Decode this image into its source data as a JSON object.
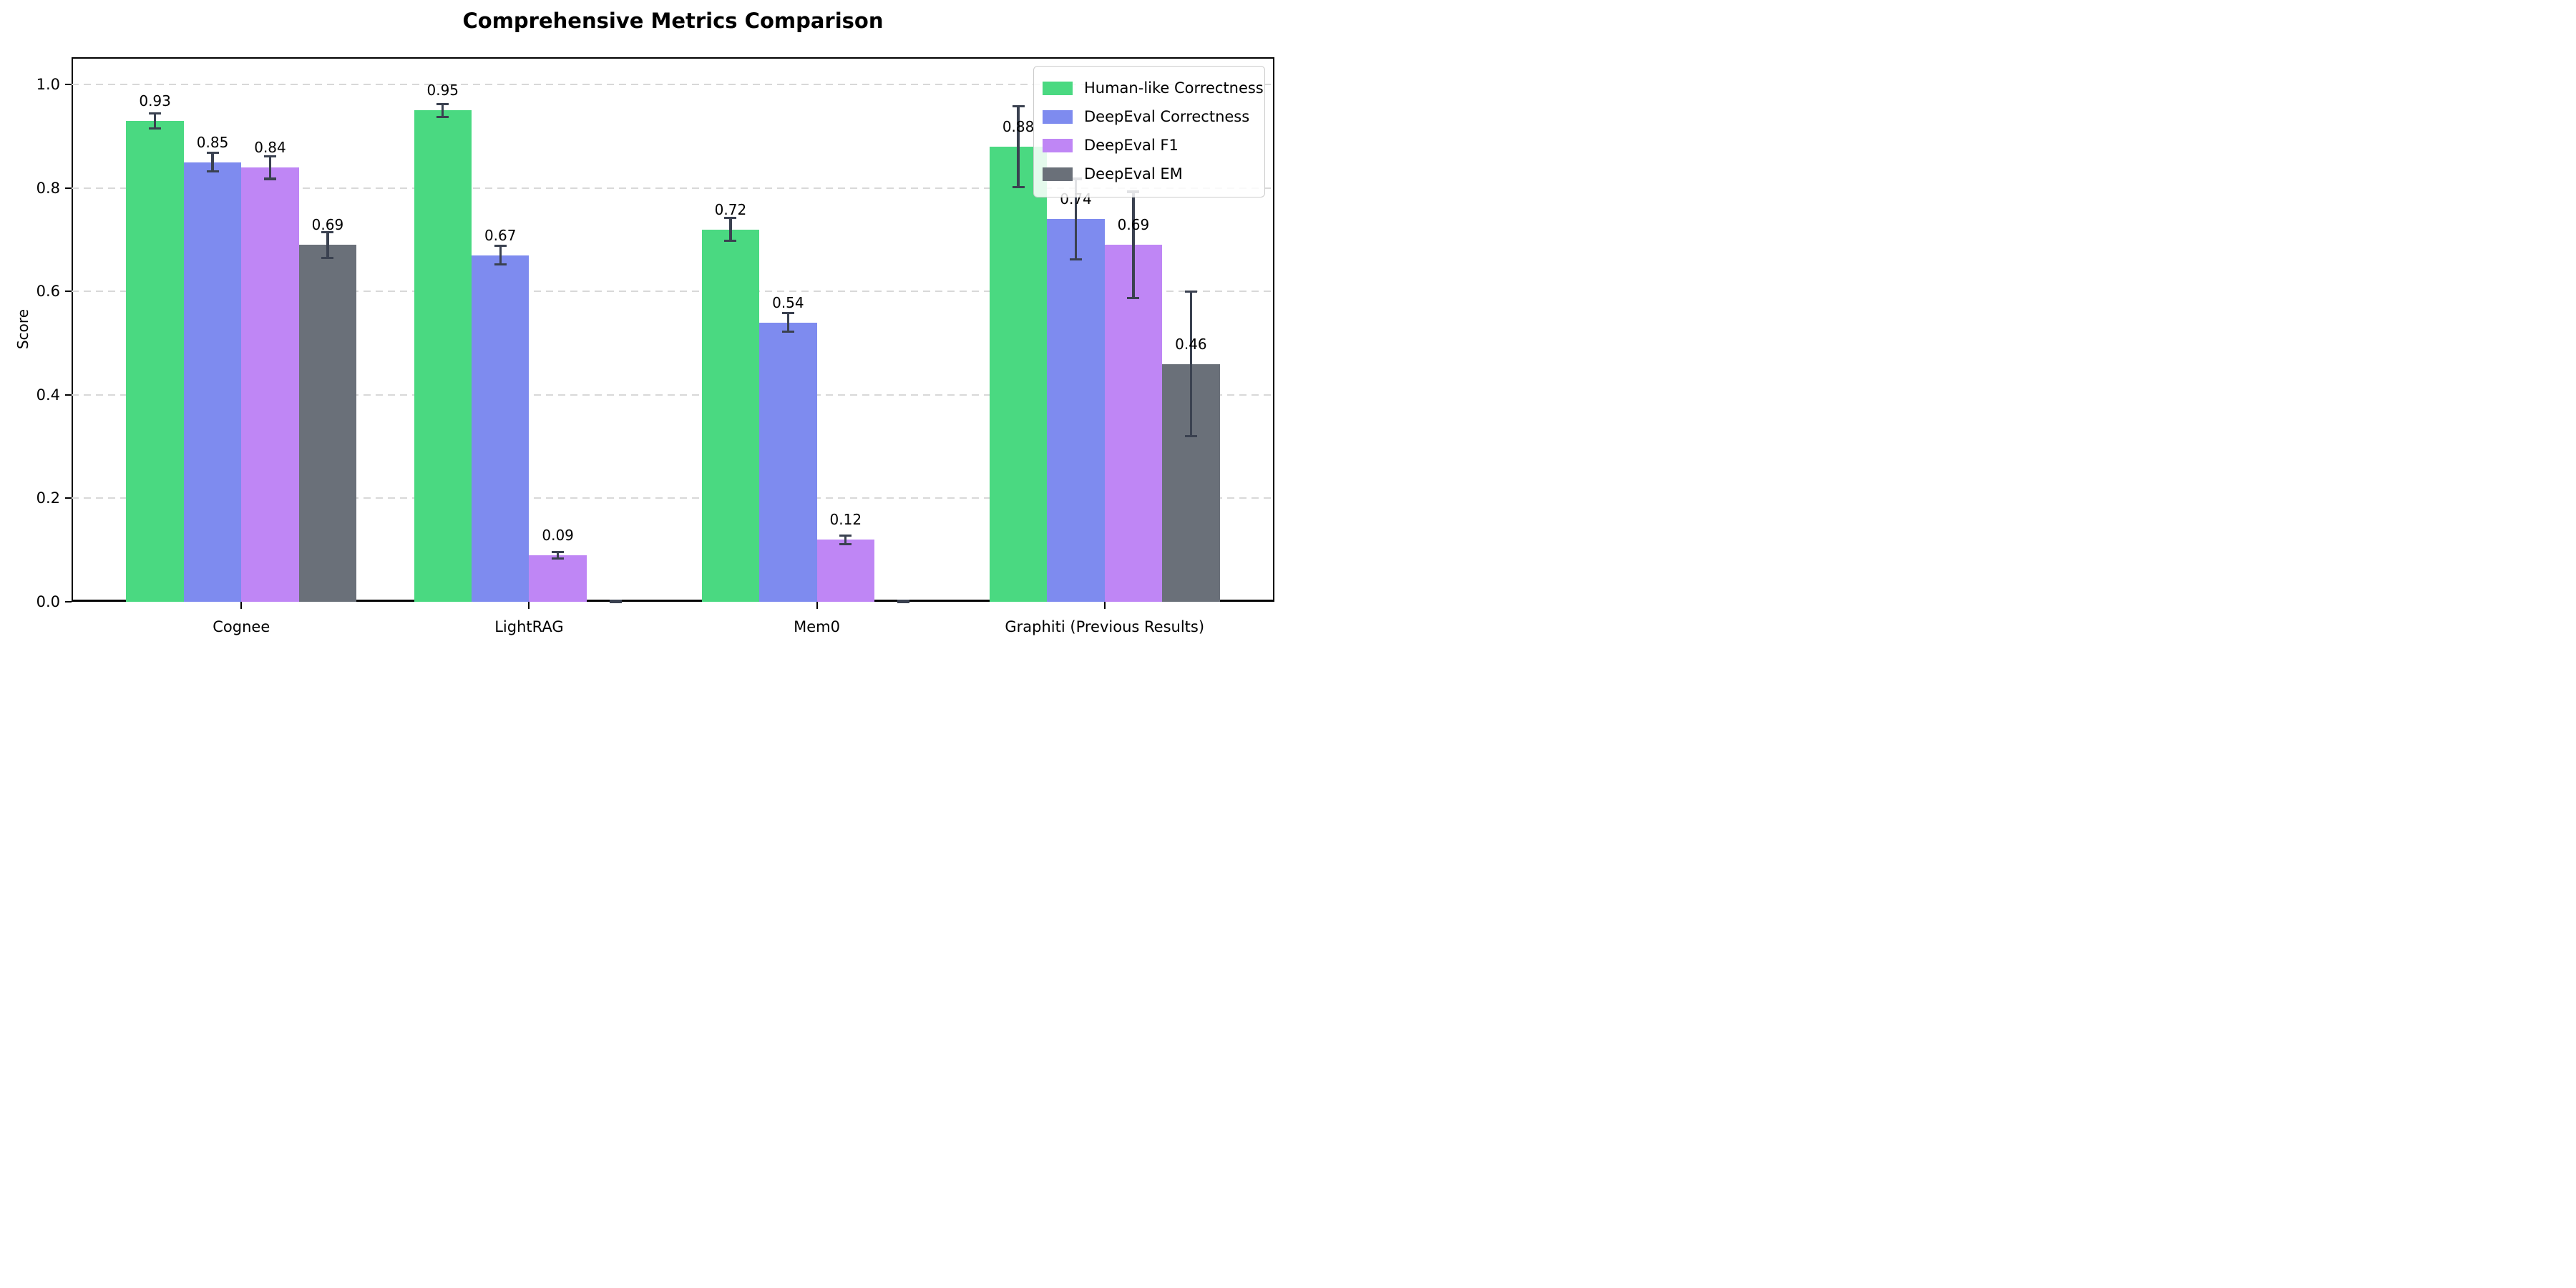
{
  "title": "Comprehensive Metrics Comparison",
  "chart_data": {
    "type": "bar",
    "title": "Comprehensive Metrics Comparison",
    "xlabel": "",
    "ylabel": "Score",
    "categories": [
      "Cognee",
      "LightRAG",
      "Mem0",
      "Graphiti (Previous Results)"
    ],
    "series": [
      {
        "name": "Human-like Correctness",
        "color": "#4ad981",
        "values": [
          0.93,
          0.95,
          0.72,
          0.88
        ],
        "errors": [
          0.015,
          0.012,
          0.022,
          0.078
        ],
        "value_labels": [
          "0.93",
          "0.95",
          "0.72",
          "0.88"
        ]
      },
      {
        "name": "DeepEval Correctness",
        "color": "#7e8bef",
        "values": [
          0.85,
          0.67,
          0.54,
          0.74
        ],
        "errors": [
          0.018,
          0.018,
          0.018,
          0.078
        ],
        "value_labels": [
          "0.85",
          "0.67",
          "0.54",
          "0.74"
        ]
      },
      {
        "name": "DeepEval F1",
        "color": "#bf86f5",
        "values": [
          0.84,
          0.09,
          0.12,
          0.69
        ],
        "errors": [
          0.022,
          0.006,
          0.008,
          0.103
        ],
        "value_labels": [
          "0.84",
          "0.09",
          "0.12",
          "0.69"
        ]
      },
      {
        "name": "DeepEval EM",
        "color": "#6a7079",
        "values": [
          0.69,
          0.0,
          0.0,
          0.46
        ],
        "errors": [
          0.025,
          0.002,
          0.002,
          0.14
        ],
        "value_labels": [
          "0.69",
          null,
          null,
          "0.46"
        ]
      }
    ],
    "yticks": [
      0.0,
      0.2,
      0.4,
      0.6,
      0.8,
      1.0
    ],
    "ytick_labels": [
      "0.0",
      "0.2",
      "0.4",
      "0.6",
      "0.8",
      "1.0"
    ],
    "ylim": [
      0,
      1.053
    ],
    "xlim": [
      -0.59,
      3.59
    ],
    "bar_width": 0.2,
    "group_offsets": [
      -0.3,
      -0.1,
      0.1,
      0.3
    ],
    "grid": "horizontal-dashed",
    "grid_color": "#d8d8d8",
    "error_bar_color": "#3a4150",
    "legend_position": "upper-right"
  }
}
